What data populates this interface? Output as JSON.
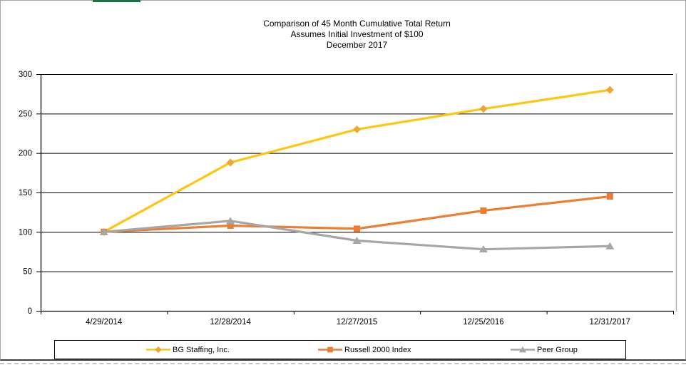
{
  "chart_data": {
    "type": "line",
    "title": "Comparison of 45 Month Cumulative Total Return",
    "subtitle": "Assumes Initial Investment of $100",
    "date_line": "December 2017",
    "categories": [
      "4/29/2014",
      "12/28/2014",
      "12/27/2015",
      "12/25/2016",
      "12/31/2017"
    ],
    "series": [
      {
        "name": "BG Staffing, Inc.",
        "marker": "diamond",
        "color": "#FFC513",
        "marker_color": "#F0A632",
        "values": [
          100,
          188,
          230,
          256,
          280
        ]
      },
      {
        "name": "Russell 2000 Index",
        "marker": "square",
        "color": "#ED7D31",
        "marker_color": "#ED7D31",
        "values": [
          100,
          108,
          104,
          127,
          145
        ]
      },
      {
        "name": "Peer Group",
        "marker": "triangle",
        "color": "#A6A6A6",
        "marker_color": "#A6A6A6",
        "values": [
          100,
          114,
          89,
          78,
          82
        ]
      }
    ],
    "ylim": [
      0,
      300
    ],
    "ytick_step": 50,
    "ytick_labels": [
      "0",
      "50",
      "100",
      "150",
      "200",
      "250",
      "300"
    ],
    "grid": true,
    "legend_position": "bottom"
  },
  "colors": {
    "axis": "#000000",
    "gridline": "#000000",
    "plot_border": "#b3b3b3",
    "legend_border": "#000000",
    "green_strip": "#1E7145"
  }
}
